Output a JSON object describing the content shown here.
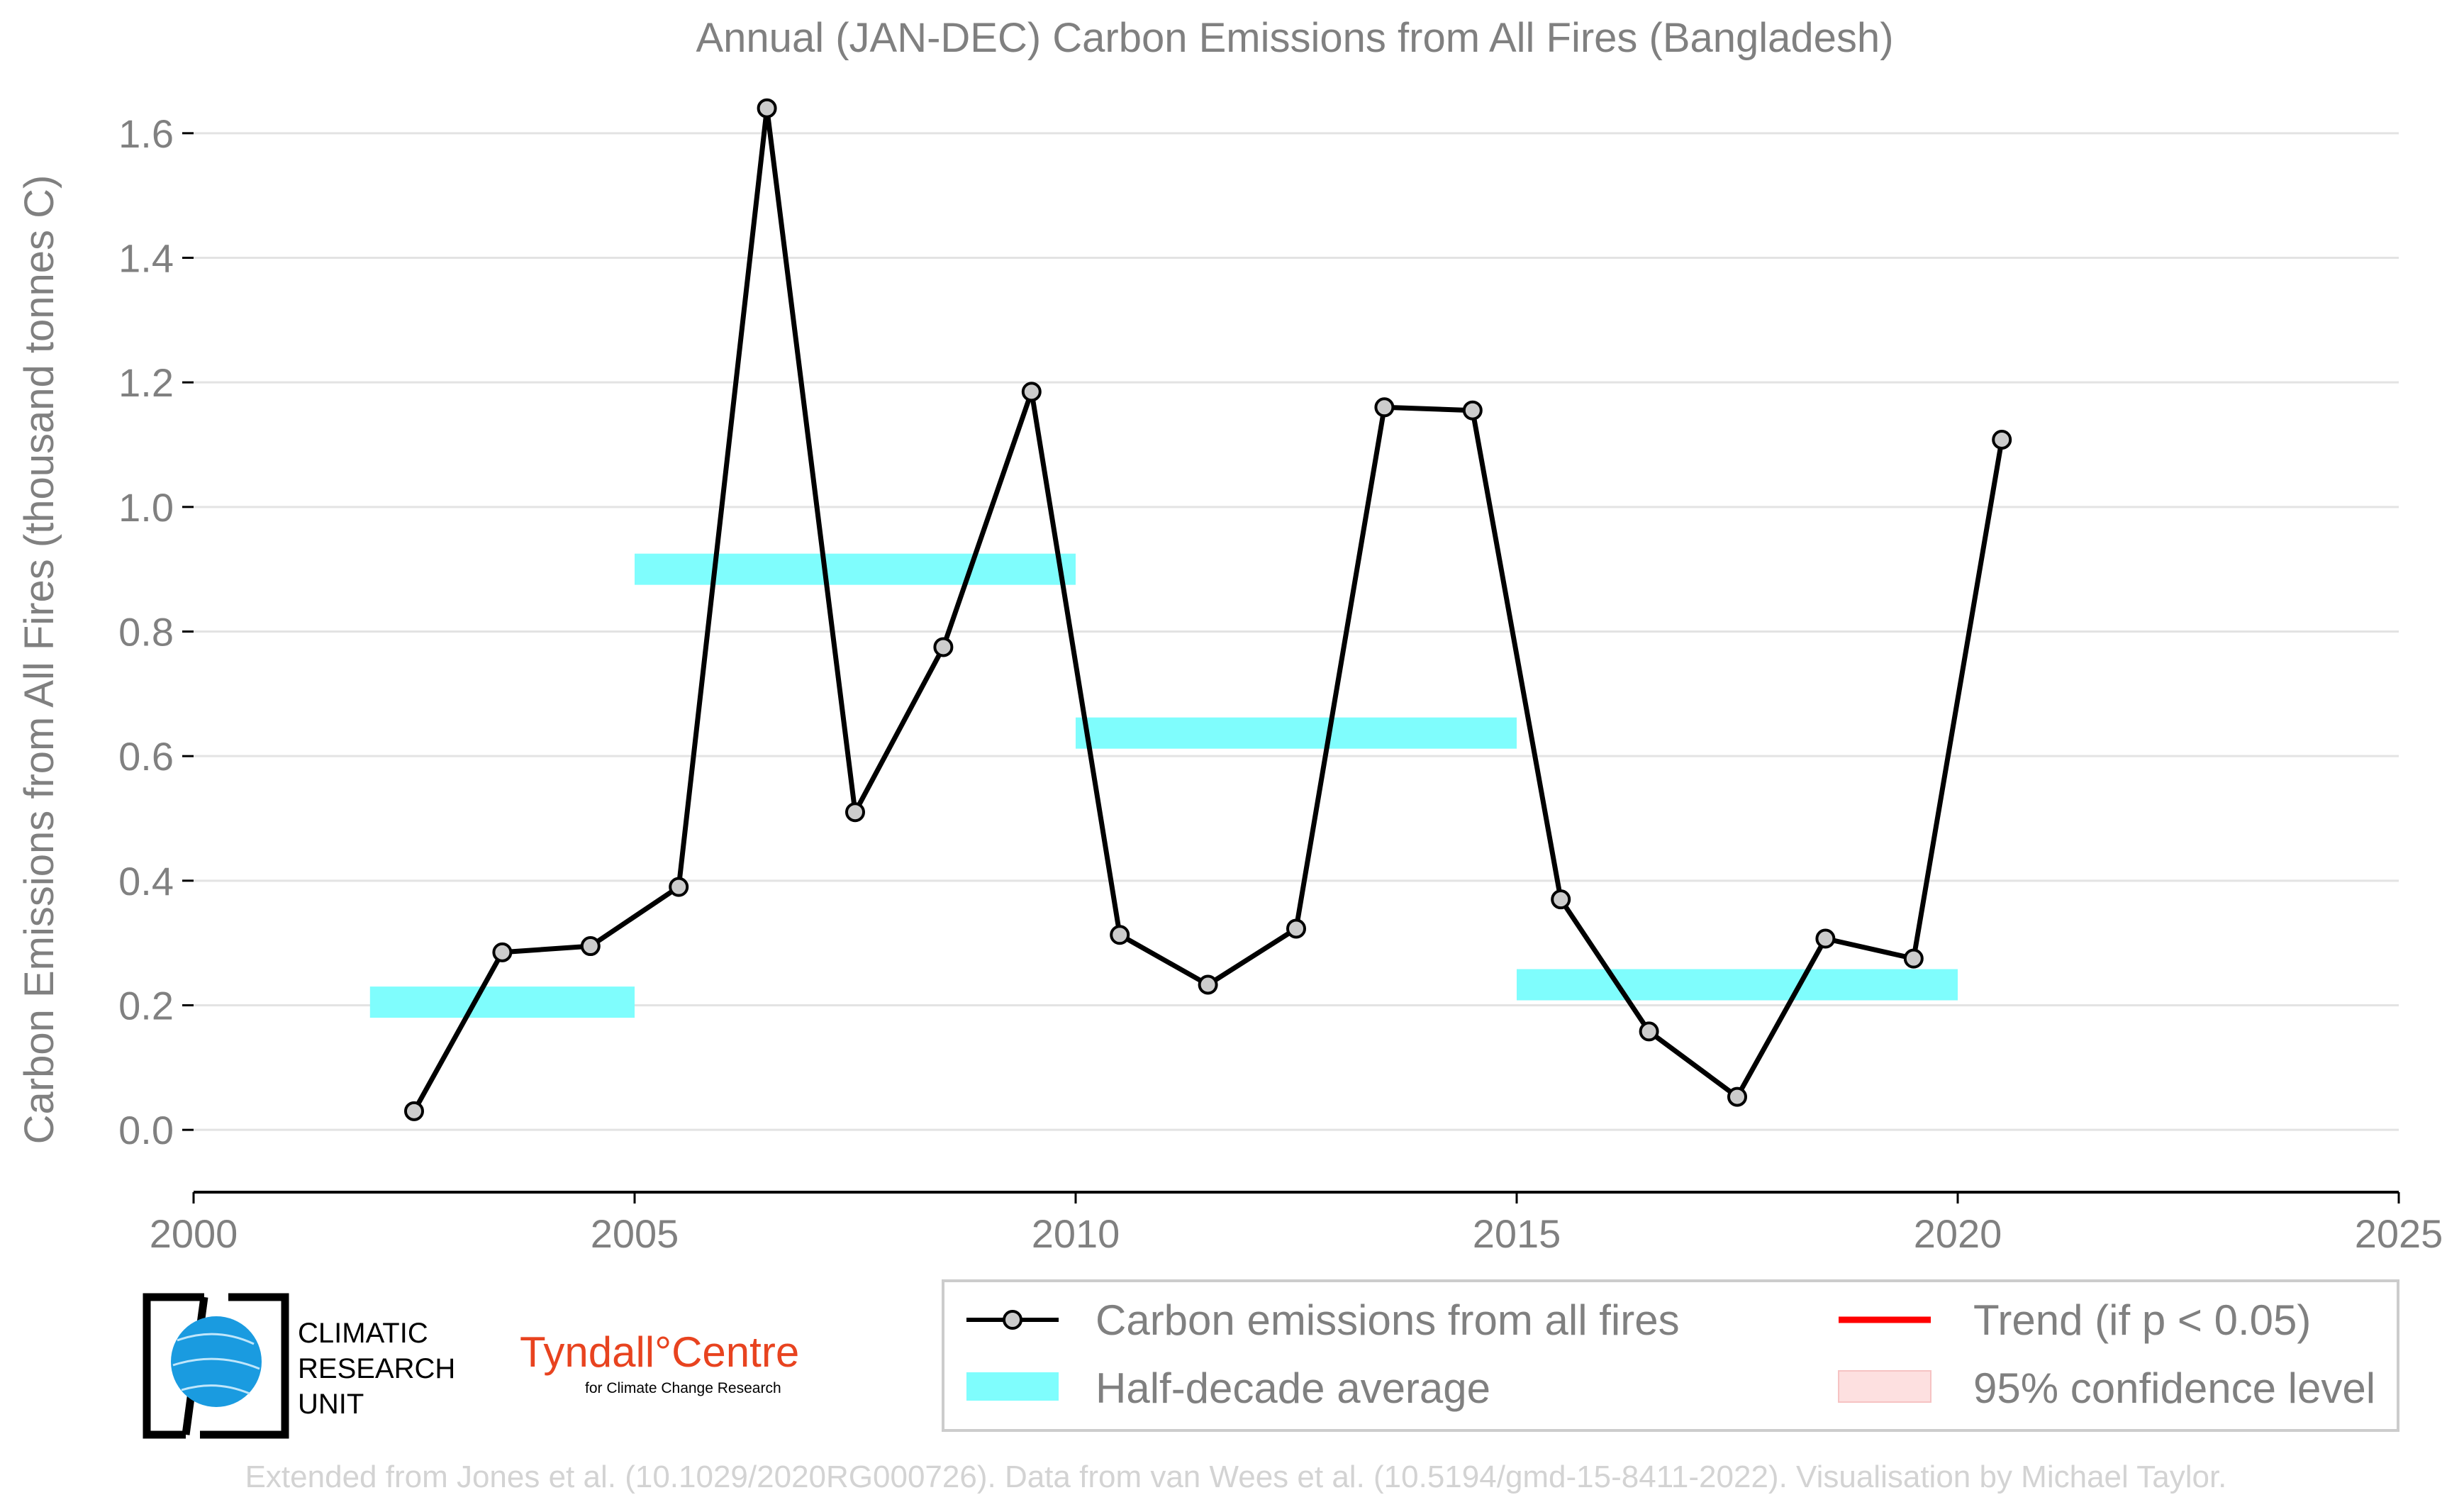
{
  "chart_data": {
    "type": "line",
    "title": "Annual (JAN-DEC) Carbon Emissions from All Fires (Bangladesh)",
    "xlabel": "",
    "ylabel": "Carbon Emissions from All Fires (thousand tonnes C)",
    "xlim": [
      2000,
      2025
    ],
    "ylim": [
      -0.1,
      1.7
    ],
    "xticks": [
      "2000",
      "2005",
      "2010",
      "2015",
      "2020",
      "2025"
    ],
    "yticks": [
      "0.0",
      "0.2",
      "0.4",
      "0.6",
      "0.8",
      "1.0",
      "1.2",
      "1.4",
      "1.6"
    ],
    "grid": "horizontal",
    "series": [
      {
        "name": "Carbon emissions from all fires",
        "color": "#000000",
        "x": [
          2002.5,
          2003.5,
          2004.5,
          2005.5,
          2006.5,
          2007.5,
          2008.5,
          2009.5,
          2010.5,
          2011.5,
          2012.5,
          2013.5,
          2014.5,
          2015.5,
          2016.5,
          2017.5,
          2018.5,
          2019.5,
          2020.5
        ],
        "y": [
          0.03,
          0.285,
          0.295,
          0.39,
          1.64,
          0.51,
          0.775,
          1.185,
          0.313,
          0.233,
          0.323,
          1.16,
          1.155,
          0.37,
          0.158,
          0.053,
          0.307,
          0.275,
          1.108
        ]
      }
    ],
    "half_decade_average": {
      "name": "Half-decade average",
      "color": "#7ffdfd",
      "segments": [
        {
          "x0": 2002,
          "x1": 2005,
          "y": 0.205
        },
        {
          "x0": 2005,
          "x1": 2010,
          "y": 0.9
        },
        {
          "x0": 2010,
          "x1": 2015,
          "y": 0.637
        },
        {
          "x0": 2015,
          "x1": 2020,
          "y": 0.233
        }
      ]
    },
    "legend": {
      "placement": "bottom-right",
      "entries": [
        "Carbon emissions from all fires",
        "Trend (if p < 0.05)",
        "Half-decade average",
        "95% confidence level"
      ],
      "trend_color": "#ff0000",
      "confidence_color": "#fde0e0"
    }
  },
  "logos": {
    "cru_lines": [
      "CLIMATIC",
      "RESEARCH",
      "UNIT"
    ],
    "tyndall_main": "Tyndall°Centre",
    "tyndall_sub": "for Climate Change Research"
  },
  "footer": "Extended from Jones et al. (10.1029/2020RG000726). Data from van Wees et al. (10.5194/gmd-15-8411-2022). Visualisation by Michael Taylor."
}
